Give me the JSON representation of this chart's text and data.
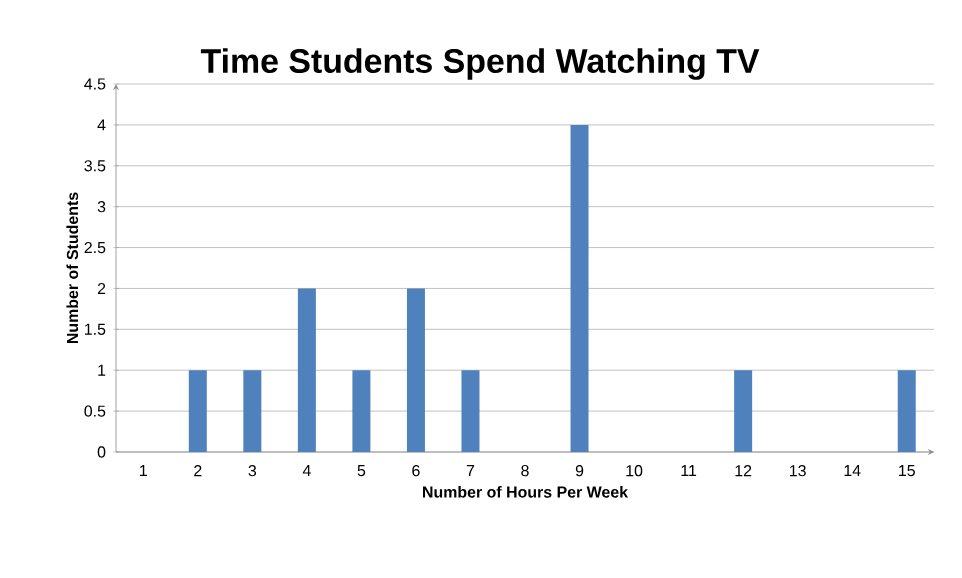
{
  "chart_data": {
    "type": "bar",
    "title": "Time Students Spend Watching TV",
    "xlabel": "Number of Hours Per Week",
    "ylabel": "Number of Students",
    "categories": [
      "1",
      "2",
      "3",
      "4",
      "5",
      "6",
      "7",
      "8",
      "9",
      "10",
      "11",
      "12",
      "13",
      "14",
      "15"
    ],
    "values": [
      0,
      1,
      1,
      2,
      1,
      2,
      1,
      0,
      4,
      0,
      0,
      1,
      0,
      0,
      1
    ],
    "color": "#4f81bd",
    "ylim": [
      0,
      4.5
    ],
    "yticks": [
      0,
      0.5,
      1,
      1.5,
      2,
      2.5,
      3,
      3.5,
      4,
      4.5
    ],
    "grid": "y"
  }
}
